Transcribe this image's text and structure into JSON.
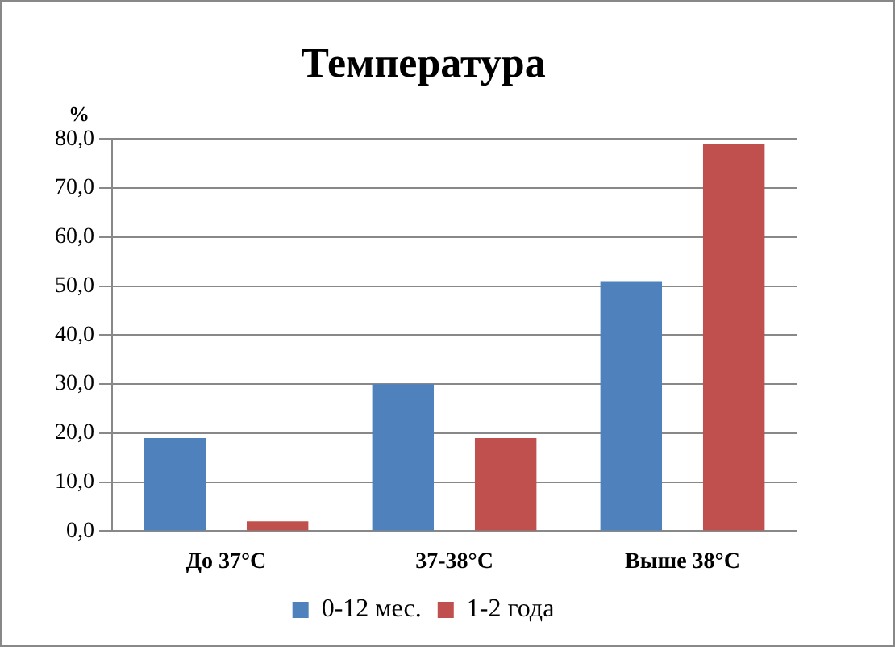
{
  "chart_data": {
    "type": "bar",
    "title": "Температура",
    "ylabel": "%",
    "categories": [
      "До 37°С",
      "37-38°С",
      "Выше 38°С"
    ],
    "series": [
      {
        "name": "0-12 мес.",
        "color": "#4f81bd",
        "values": [
          19,
          30,
          51
        ]
      },
      {
        "name": "1-2 года",
        "color": "#c0504d",
        "values": [
          2,
          19,
          79
        ]
      }
    ],
    "ylim": [
      0,
      80
    ],
    "yticks": [
      {
        "value": 0,
        "label": "0,0"
      },
      {
        "value": 10,
        "label": "10,0"
      },
      {
        "value": 20,
        "label": "20,0"
      },
      {
        "value": 30,
        "label": "30,0"
      },
      {
        "value": 40,
        "label": "40,0"
      },
      {
        "value": 50,
        "label": "50,0"
      },
      {
        "value": 60,
        "label": "60,0"
      },
      {
        "value": 70,
        "label": "70,0"
      },
      {
        "value": 80,
        "label": "80,0"
      }
    ],
    "grid": "y",
    "legend": "bottom"
  }
}
